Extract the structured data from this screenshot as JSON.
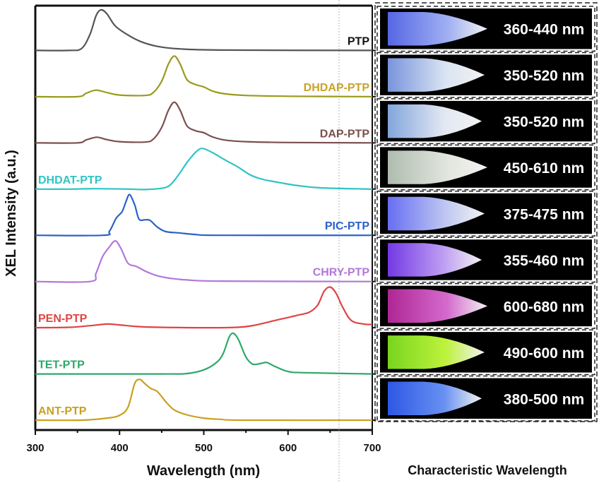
{
  "chart_data": {
    "type": "line",
    "layout": "stacked-offset",
    "xlabel": "Wavelength (nm)",
    "ylabel": "XEL Intensity (a.u.)",
    "xlim": [
      300,
      700
    ],
    "xticks": [
      300,
      400,
      500,
      600,
      700
    ],
    "ylim": [
      0,
      1
    ],
    "grid": false,
    "right_panel_caption": "Characteristic Wavelength",
    "series": [
      {
        "name": "PTP",
        "color": "#555555",
        "label_color": "#111111",
        "label_pos": "right",
        "range_label": "360-440 nm",
        "glow": [
          "#5a6cf0",
          "#a8b8ff"
        ],
        "points": [
          [
            300,
            0
          ],
          [
            340,
            0
          ],
          [
            355,
            0.05
          ],
          [
            365,
            0.4
          ],
          [
            372,
            0.85
          ],
          [
            378,
            1.0
          ],
          [
            385,
            0.9
          ],
          [
            395,
            0.6
          ],
          [
            410,
            0.38
          ],
          [
            425,
            0.22
          ],
          [
            445,
            0.1
          ],
          [
            470,
            0.04
          ],
          [
            520,
            0.01
          ],
          [
            700,
            0
          ]
        ]
      },
      {
        "name": "DHDAP-PTP",
        "color": "#9a9a1c",
        "label_color": "#c9a326",
        "label_pos": "right",
        "range_label": "350-520 nm",
        "glow": [
          "#7f9ce8",
          "#e6f0ff"
        ],
        "points": [
          [
            300,
            0
          ],
          [
            350,
            0
          ],
          [
            360,
            0.08
          ],
          [
            372,
            0.16
          ],
          [
            385,
            0.1
          ],
          [
            400,
            0.04
          ],
          [
            430,
            0.03
          ],
          [
            440,
            0.1
          ],
          [
            450,
            0.38
          ],
          [
            458,
            0.8
          ],
          [
            465,
            1.0
          ],
          [
            472,
            0.8
          ],
          [
            480,
            0.42
          ],
          [
            490,
            0.3
          ],
          [
            500,
            0.24
          ],
          [
            510,
            0.14
          ],
          [
            525,
            0.07
          ],
          [
            550,
            0.03
          ],
          [
            600,
            0.01
          ],
          [
            700,
            0
          ]
        ]
      },
      {
        "name": "DAP-PTP",
        "color": "#7a4f4f",
        "label_color": "#7a4f4f",
        "label_pos": "right",
        "range_label": "350-520 nm",
        "glow": [
          "#8aaee8",
          "#eef4ff"
        ],
        "points": [
          [
            300,
            0
          ],
          [
            350,
            0
          ],
          [
            360,
            0.07
          ],
          [
            373,
            0.14
          ],
          [
            385,
            0.08
          ],
          [
            400,
            0.03
          ],
          [
            430,
            0.02
          ],
          [
            440,
            0.09
          ],
          [
            450,
            0.38
          ],
          [
            458,
            0.8
          ],
          [
            465,
            1.0
          ],
          [
            472,
            0.8
          ],
          [
            480,
            0.42
          ],
          [
            490,
            0.3
          ],
          [
            500,
            0.25
          ],
          [
            510,
            0.15
          ],
          [
            525,
            0.07
          ],
          [
            550,
            0.03
          ],
          [
            600,
            0.01
          ],
          [
            700,
            0
          ]
        ]
      },
      {
        "name": "DHDAT-PTP",
        "color": "#2fc4c4",
        "label_color": "#2fc4c4",
        "label_pos": "left",
        "range_label": "450-610 nm",
        "glow": [
          "#b9c6b8",
          "#eef2ea"
        ],
        "points": [
          [
            300,
            0
          ],
          [
            340,
            0
          ],
          [
            370,
            0.01
          ],
          [
            410,
            0
          ],
          [
            430,
            -0.01
          ],
          [
            450,
            0.02
          ],
          [
            460,
            0.1
          ],
          [
            470,
            0.35
          ],
          [
            480,
            0.65
          ],
          [
            490,
            0.9
          ],
          [
            498,
            1.0
          ],
          [
            510,
            0.9
          ],
          [
            525,
            0.72
          ],
          [
            540,
            0.55
          ],
          [
            555,
            0.35
          ],
          [
            570,
            0.24
          ],
          [
            590,
            0.16
          ],
          [
            610,
            0.09
          ],
          [
            640,
            0.03
          ],
          [
            700,
            0
          ]
        ]
      },
      {
        "name": "PIC-PTP",
        "color": "#2a62c9",
        "label_color": "#2a62c9",
        "label_pos": "right",
        "range_label": "375-475 nm",
        "glow": [
          "#6d74ff",
          "#c9d2ff"
        ],
        "points": [
          [
            300,
            0
          ],
          [
            380,
            0
          ],
          [
            388,
            0.1
          ],
          [
            396,
            0.42
          ],
          [
            403,
            0.58
          ],
          [
            408,
            0.85
          ],
          [
            412,
            1.0
          ],
          [
            418,
            0.75
          ],
          [
            423,
            0.4
          ],
          [
            430,
            0.38
          ],
          [
            436,
            0.37
          ],
          [
            445,
            0.2
          ],
          [
            455,
            0.09
          ],
          [
            470,
            0.06
          ],
          [
            490,
            0.02
          ],
          [
            520,
            0
          ],
          [
            700,
            0
          ]
        ]
      },
      {
        "name": "CHRY-PTP",
        "color": "#b377d8",
        "label_color": "#b377d8",
        "label_pos": "right",
        "range_label": "355-460 nm",
        "glow": [
          "#7a3cf0",
          "#c9a8ff"
        ],
        "points": [
          [
            300,
            0
          ],
          [
            365,
            0
          ],
          [
            372,
            0.2
          ],
          [
            380,
            0.62
          ],
          [
            388,
            0.85
          ],
          [
            395,
            1.0
          ],
          [
            402,
            0.8
          ],
          [
            410,
            0.45
          ],
          [
            420,
            0.37
          ],
          [
            432,
            0.24
          ],
          [
            445,
            0.14
          ],
          [
            460,
            0.08
          ],
          [
            480,
            0.04
          ],
          [
            520,
            0.01
          ],
          [
            700,
            0
          ]
        ]
      },
      {
        "name": "PEN-PTP",
        "color": "#e04444",
        "label_color": "#e04444",
        "label_pos": "left",
        "range_label": "600-680 nm",
        "glow": [
          "#b8289c",
          "#e070d8"
        ],
        "points": [
          [
            300,
            0
          ],
          [
            340,
            0.01
          ],
          [
            365,
            0.05
          ],
          [
            385,
            0.09
          ],
          [
            400,
            0.07
          ],
          [
            430,
            0.02
          ],
          [
            500,
            0
          ],
          [
            540,
            0.01
          ],
          [
            560,
            0.06
          ],
          [
            585,
            0.18
          ],
          [
            610,
            0.3
          ],
          [
            625,
            0.38
          ],
          [
            635,
            0.55
          ],
          [
            643,
            0.9
          ],
          [
            650,
            1.0
          ],
          [
            657,
            0.85
          ],
          [
            665,
            0.5
          ],
          [
            675,
            0.18
          ],
          [
            690,
            0.09
          ],
          [
            700,
            0.08
          ]
        ]
      },
      {
        "name": "TET-PTP",
        "color": "#2fa86a",
        "label_color": "#2fa86a",
        "label_pos": "left",
        "range_label": "490-600 nm",
        "glow": [
          "#7fe020",
          "#c8ff40"
        ],
        "points": [
          [
            300,
            0
          ],
          [
            450,
            0
          ],
          [
            480,
            0.01
          ],
          [
            500,
            0.1
          ],
          [
            515,
            0.28
          ],
          [
            523,
            0.5
          ],
          [
            530,
            0.9
          ],
          [
            535,
            1.0
          ],
          [
            541,
            0.85
          ],
          [
            550,
            0.42
          ],
          [
            558,
            0.24
          ],
          [
            568,
            0.26
          ],
          [
            575,
            0.28
          ],
          [
            585,
            0.18
          ],
          [
            600,
            0.06
          ],
          [
            620,
            0.03
          ],
          [
            700,
            0
          ]
        ]
      },
      {
        "name": "ANT-PTP",
        "color": "#c9a020",
        "label_color": "#c9a020",
        "label_pos": "left",
        "range_label": "380-500 nm",
        "glow": [
          "#2f5cf0",
          "#6d98ff"
        ],
        "points": [
          [
            300,
            0
          ],
          [
            355,
            0
          ],
          [
            385,
            0.05
          ],
          [
            400,
            0.12
          ],
          [
            410,
            0.32
          ],
          [
            418,
            0.9
          ],
          [
            424,
            1.0
          ],
          [
            430,
            0.9
          ],
          [
            437,
            0.78
          ],
          [
            445,
            0.7
          ],
          [
            455,
            0.45
          ],
          [
            465,
            0.25
          ],
          [
            480,
            0.13
          ],
          [
            500,
            0.05
          ],
          [
            520,
            0.02
          ],
          [
            545,
            0
          ],
          [
            700,
            0
          ]
        ]
      }
    ]
  }
}
